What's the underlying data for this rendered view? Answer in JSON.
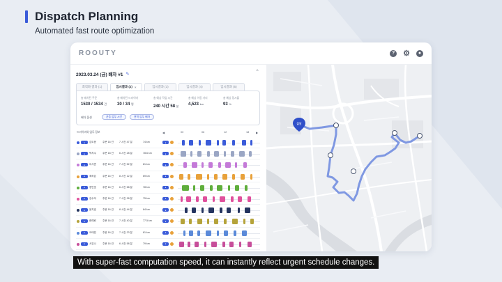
{
  "colors": {
    "accent": "#3a5bd9",
    "route": "#7f98e2",
    "marker": "#2f4fc9",
    "bg": "#e9edf3"
  },
  "header": {
    "title": "Dispatch Planning",
    "subtitle": "Automated fast route optimization"
  },
  "app": {
    "logo": "ROOUTY",
    "icons": [
      "help-icon",
      "gear-icon",
      "user-icon"
    ]
  },
  "plan": {
    "title": "2023.03.24 (금) 배차 #1",
    "tabs": [
      {
        "label": "최적화 결과 (1)",
        "active": false
      },
      {
        "label": "임시결과 (2)",
        "active": true
      },
      {
        "label": "임시결과 (3)",
        "active": false
      },
      {
        "label": "임시결과 (4)",
        "active": false
      },
      {
        "label": "임시결과 (5)",
        "active": false
      }
    ],
    "stats": [
      {
        "label": "총 배차된 주문",
        "value": "1530 / 1534",
        "unit": "건"
      },
      {
        "label": "총 배차된 드라이버",
        "value": "30 / 34",
        "unit": "명"
      },
      {
        "label": "총 예상 작업 시간",
        "value": "240 시간 58",
        "unit": "분"
      },
      {
        "label": "총 예상 이동 거리",
        "value": "4,523",
        "unit": "km"
      },
      {
        "label": "총 예상 정시율",
        "value": "93",
        "unit": "%"
      }
    ],
    "option_label": "배차 옵션",
    "chips": [
      "균등 업무 시간",
      "권역 업무 배차"
    ],
    "grid_header": {
      "left": "드라이버와 업무 정보",
      "time_marks": [
        "00",
        "06",
        "12",
        "18"
      ]
    },
    "rows": [
      {
        "name": "김도윤",
        "count": "주문 16 건",
        "time": "7 시간 47 분",
        "dist": "74 km",
        "dot": "#3a5bd9"
      },
      {
        "name": "박지수",
        "count": "주문 18 건",
        "time": "6 시간 28 분",
        "dist": "78.6 km",
        "dot": "#9aa6c4"
      },
      {
        "name": "이서준",
        "count": "주문 16 건",
        "time": "7 시간 52 분",
        "dist": "81 km",
        "dot": "#c47ad8"
      },
      {
        "name": "최하은",
        "count": "주문 16 건",
        "time": "8 시간 12 분",
        "dist": "69 km",
        "dot": "#e8a13a"
      },
      {
        "name": "정민호",
        "count": "주문 16 건",
        "time": "6 시간 58 분",
        "dist": "78 km",
        "dot": "#5fae3c"
      },
      {
        "name": "강수아",
        "count": "주문 16 건",
        "time": "7 시간 28 분",
        "dist": "75 km",
        "dot": "#e0509c"
      },
      {
        "name": "윤지호",
        "count": "주문 16 건",
        "time": "8 시간 44 분",
        "dist": "84 km",
        "dot": "#24345f"
      },
      {
        "name": "한예린",
        "count": "주문 16 건",
        "time": "7 시간 40 분",
        "dist": "77.5 km",
        "dot": "#b5a33a"
      },
      {
        "name": "오태민",
        "count": "주문 16 건",
        "time": "7 시간 23 분",
        "dist": "81 km",
        "dot": "#5b8ad9"
      },
      {
        "name": "서유나",
        "count": "주문 16 건",
        "time": "6 시간 58 분",
        "dist": "79 km",
        "dot": "#c74e9a"
      }
    ]
  },
  "map": {
    "start_label": "출발"
  },
  "caption": "With super-fast computation speed, it can instantly reflect urgent schedule changes."
}
